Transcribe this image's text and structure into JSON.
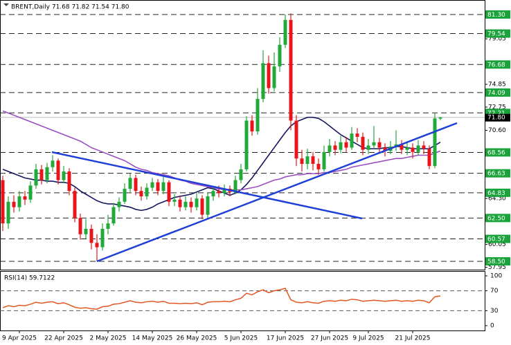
{
  "chart_data": [
    {
      "type": "candlestick",
      "title": "BRENT,Daily 71.68 71.82 71.54 71.80",
      "categories": [
        null,
        null,
        null,
        "9 Apr 2025",
        null,
        null,
        null,
        null,
        null,
        null,
        null,
        "22 Apr 2025",
        null,
        null,
        null,
        null,
        null,
        null,
        null,
        "2 May 2025",
        null,
        null,
        null,
        null,
        null,
        null,
        null,
        "14 May 2025",
        null,
        null,
        null,
        null,
        null,
        null,
        null,
        "26 May 2025",
        null,
        null,
        null,
        null,
        null,
        null,
        null,
        "5 Jun 2025",
        null,
        null,
        null,
        null,
        null,
        null,
        null,
        "17 Jun 2025",
        null,
        null,
        null,
        null,
        null,
        null,
        null,
        "27 Jun 2025",
        null,
        null,
        null,
        null,
        null,
        null,
        "9 Jul 2025",
        null,
        null,
        null,
        null,
        null,
        null,
        null,
        "21 Jul 2025",
        null,
        null,
        null,
        null,
        null
      ],
      "open": [
        66.0,
        62.0,
        64.0,
        63.5,
        64.5,
        64.2,
        65.5,
        67.0,
        66.0,
        67.2,
        67.8,
        66.0,
        66.8,
        65.0,
        62.5,
        61.0,
        61.5,
        60.2,
        59.8,
        61.5,
        62.0,
        63.5,
        64.0,
        65.2,
        66.2,
        65.0,
        64.5,
        65.3,
        65.8,
        65.0,
        65.8,
        64.0,
        64.2,
        63.5,
        64.0,
        63.5,
        64.3,
        62.8,
        64.5,
        65.0,
        64.8,
        65.2,
        64.9,
        66.0,
        67.0,
        71.5,
        70.5,
        73.5,
        76.8,
        74.5,
        76.5,
        78.5,
        80.8,
        71.5,
        68.0,
        67.5,
        68.2,
        67.5,
        67.0,
        68.6,
        69.2,
        68.8,
        69.5,
        69.0,
        70.3,
        70.0,
        68.8,
        69.2,
        69.5,
        69.0,
        68.7,
        69.1,
        69.3,
        68.8,
        69.0,
        68.6,
        69.2,
        68.9,
        67.3,
        71.68
      ],
      "high": [
        66.4,
        64.5,
        64.6,
        65.0,
        65.0,
        65.9,
        67.5,
        67.4,
        67.6,
        68.3,
        68.0,
        67.3,
        67.1,
        65.3,
        62.9,
        62.4,
        61.9,
        61.0,
        62.0,
        62.8,
        63.9,
        64.4,
        65.7,
        66.6,
        66.5,
        65.4,
        65.7,
        66.2,
        66.1,
        66.3,
        66.0,
        64.7,
        64.6,
        64.5,
        64.4,
        64.8,
        64.6,
        64.9,
        65.4,
        65.5,
        65.6,
        65.5,
        66.4,
        67.5,
        71.9,
        72.0,
        74.5,
        78.0,
        77.5,
        77.8,
        79.2,
        81.3,
        81.4,
        72.0,
        68.8,
        68.9,
        68.6,
        68.0,
        69.2,
        69.8,
        69.6,
        70.1,
        70.0,
        70.9,
        70.8,
        70.4,
        69.8,
        71.0,
        69.9,
        69.4,
        69.6,
        70.6,
        69.7,
        69.5,
        69.4,
        69.7,
        69.6,
        69.2,
        72.2,
        71.82
      ],
      "low": [
        61.3,
        61.5,
        63.0,
        63.1,
        63.7,
        63.9,
        65.2,
        65.6,
        65.7,
        66.8,
        65.6,
        65.7,
        64.6,
        62.1,
        60.5,
        60.6,
        59.6,
        58.5,
        59.5,
        61.0,
        61.8,
        63.1,
        63.8,
        64.9,
        64.6,
        64.1,
        64.2,
        65.0,
        64.6,
        64.7,
        63.6,
        63.6,
        63.1,
        63.2,
        63.0,
        63.2,
        62.4,
        62.5,
        64.1,
        64.4,
        64.5,
        64.5,
        64.7,
        65.7,
        66.8,
        70.1,
        70.2,
        73.2,
        74.0,
        74.2,
        76.0,
        78.2,
        70.6,
        67.3,
        66.8,
        67.0,
        66.9,
        66.5,
        66.8,
        68.2,
        68.3,
        68.5,
        68.6,
        68.8,
        69.5,
        68.3,
        68.4,
        68.9,
        68.5,
        68.2,
        68.4,
        68.7,
        68.4,
        68.3,
        68.0,
        68.3,
        68.4,
        67.0,
        67.1,
        71.54
      ],
      "close": [
        62.0,
        64.0,
        63.5,
        64.5,
        64.2,
        65.5,
        67.0,
        66.0,
        67.2,
        67.8,
        66.0,
        66.8,
        65.0,
        62.5,
        61.0,
        61.5,
        60.2,
        59.8,
        61.5,
        62.0,
        63.5,
        64.0,
        65.2,
        66.2,
        65.0,
        64.5,
        65.3,
        65.8,
        65.0,
        65.8,
        64.0,
        64.2,
        63.5,
        64.0,
        63.5,
        64.3,
        62.8,
        64.5,
        65.0,
        64.8,
        65.2,
        64.9,
        66.0,
        67.0,
        71.5,
        70.5,
        73.5,
        76.8,
        74.5,
        76.5,
        78.5,
        80.8,
        71.5,
        68.0,
        67.5,
        68.2,
        67.5,
        67.0,
        68.6,
        69.2,
        68.8,
        69.5,
        69.0,
        70.3,
        70.0,
        68.8,
        69.2,
        69.5,
        69.0,
        68.7,
        69.1,
        69.3,
        68.8,
        69.0,
        68.6,
        69.2,
        68.9,
        67.3,
        71.7,
        71.8
      ],
      "up_color": "#1faa3a",
      "down_color": "#e8141b",
      "lines": [
        {
          "color": "#14165e",
          "values": [
            67.0,
            66.8,
            66.6,
            66.4,
            66.2,
            66.1,
            66.0,
            66.0,
            65.9,
            65.9,
            65.8,
            65.8,
            65.7,
            65.4,
            65.0,
            64.7,
            64.4,
            64.1,
            63.9,
            63.8,
            63.8,
            63.7,
            63.6,
            63.5,
            63.3,
            63.2,
            63.3,
            63.5,
            63.8,
            64.0,
            64.2,
            64.4,
            64.5,
            64.6,
            64.7,
            64.9,
            65.1,
            65.3,
            65.2,
            65.0,
            64.8,
            64.6,
            64.8,
            65.1,
            65.6,
            66.2,
            66.9,
            67.6,
            68.3,
            69.0,
            69.7,
            70.4,
            71.0,
            71.4,
            71.6,
            71.8,
            71.8,
            71.7,
            71.4,
            71.0,
            70.6,
            70.2,
            69.9,
            69.6,
            69.3,
            69.0,
            68.9,
            68.9,
            68.9,
            69.0,
            69.0,
            69.1,
            69.1,
            69.0,
            68.9,
            68.9,
            68.9,
            68.9,
            69.2,
            69.5
          ]
        },
        {
          "color": "#9b4fc0",
          "values": [
            72.4,
            72.2,
            72.0,
            71.8,
            71.6,
            71.4,
            71.2,
            71.0,
            70.8,
            70.6,
            70.4,
            70.2,
            70.0,
            69.8,
            69.6,
            69.3,
            69.0,
            68.8,
            68.6,
            68.4,
            68.2,
            68.0,
            67.8,
            67.5,
            67.2,
            67.0,
            66.9,
            66.7,
            66.6,
            66.5,
            66.4,
            66.2,
            66.0,
            65.9,
            65.7,
            65.6,
            65.5,
            65.4,
            65.3,
            65.2,
            65.1,
            65.1,
            65.1,
            65.1,
            65.2,
            65.3,
            65.4,
            65.6,
            65.8,
            66.0,
            66.1,
            66.3,
            66.4,
            66.5,
            66.5,
            66.6,
            66.6,
            66.6,
            66.7,
            66.7,
            66.8,
            66.9,
            67.0,
            67.2,
            67.3,
            67.4,
            67.5,
            67.6,
            67.7,
            67.8,
            67.9,
            68.0,
            68.0,
            68.1,
            68.2,
            68.3,
            68.3,
            68.3,
            68.5,
            68.7
          ]
        }
      ],
      "levels": [
        {
          "value": 81.3,
          "label": "81.30"
        },
        79.54,
        76.68,
        74.09,
        72.21,
        68.56,
        66.63,
        64.83,
        {
          "value": 62.5,
          "label": "62.50"
        },
        60.57,
        {
          "value": 58.5,
          "label": "58.50"
        }
      ],
      "level_color": "#1aa33a",
      "last_price": {
        "value": 71.8,
        "label": "71.80"
      },
      "ylim": [
        57.73,
        82.64
      ],
      "yticks": [
        79.05,
        74.85,
        72.75,
        {
          "value": 70.6,
          "label": "70.60"
        },
        {
          "value": 64.3,
          "label": "64.30"
        },
        60.05,
        57.95
      ]
    },
    {
      "type": "line",
      "title": "RSI(14) 59.7122",
      "values": [
        36,
        40,
        38,
        41,
        40,
        43,
        47,
        45,
        47,
        48,
        44,
        46,
        42,
        37,
        35,
        36,
        34,
        33,
        38,
        39,
        43,
        44,
        47,
        50,
        47,
        46,
        48,
        49,
        47,
        49,
        45,
        45,
        44,
        45,
        44,
        46,
        42,
        47,
        48,
        48,
        49,
        48,
        52,
        55,
        65,
        62,
        68,
        72,
        66,
        70,
        72,
        75,
        52,
        47,
        46,
        48,
        46,
        45,
        49,
        50,
        49,
        51,
        50,
        53,
        52,
        49,
        50,
        51,
        50,
        49,
        50,
        51,
        49,
        50,
        49,
        51,
        50,
        46,
        58,
        59.7122
      ],
      "color": "#e2571f",
      "ylim": [
        -9.7,
        108.3
      ],
      "yticks": [
        100,
        70,
        30,
        0
      ],
      "levels": [
        70,
        30
      ]
    }
  ]
}
